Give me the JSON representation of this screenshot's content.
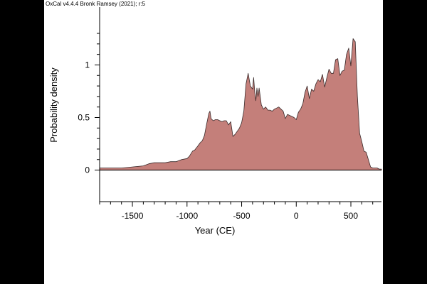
{
  "header": {
    "software": "OxCal v4.4.4 Bronk Ramsey (2021); r:5"
  },
  "chart_data": {
    "type": "area",
    "title": "",
    "xlabel": "Year (CE)",
    "ylabel": "Probability density",
    "xlim": [
      -1800,
      780
    ],
    "ylim": [
      -0.3,
      1.55
    ],
    "x_ticks": [
      -1500,
      -1000,
      -500,
      0,
      500
    ],
    "x_tick_labels": [
      "-1500",
      "-1000",
      "-500",
      "0",
      "500"
    ],
    "y_ticks": [
      0,
      0.5,
      1
    ],
    "y_tick_labels": [
      "0",
      "0.5",
      "1"
    ],
    "grid": false,
    "legend": "none",
    "fill_color": "#c47f7a",
    "line_color": "#3a2a2a",
    "series": [
      {
        "x": [
          -1800,
          -1600,
          -1500,
          -1400,
          -1350,
          -1300,
          -1250,
          -1200,
          -1150,
          -1100,
          -1050,
          -1000,
          -980,
          -950,
          -930,
          -900,
          -880,
          -860,
          -840,
          -820,
          -800,
          -790,
          -780,
          -770,
          -760,
          -740,
          -720,
          -700,
          -680,
          -660,
          -640,
          -620,
          -600,
          -580,
          -560,
          -540,
          -520,
          -500,
          -480,
          -460,
          -440,
          -420,
          -400,
          -390,
          -380,
          -370,
          -360,
          -350,
          -340,
          -320,
          -300,
          -280,
          -260,
          -240,
          -220,
          -200,
          -180,
          -160,
          -140,
          -120,
          -100,
          -80,
          -60,
          -40,
          -20,
          0,
          20,
          40,
          60,
          80,
          100,
          120,
          140,
          160,
          180,
          200,
          220,
          240,
          260,
          280,
          300,
          320,
          340,
          360,
          380,
          400,
          420,
          440,
          460,
          480,
          500,
          520,
          540,
          560,
          580,
          600,
          620,
          640,
          660,
          680,
          700,
          720,
          740,
          760,
          780
        ],
        "values": [
          0.02,
          0.02,
          0.03,
          0.04,
          0.06,
          0.07,
          0.07,
          0.07,
          0.08,
          0.08,
          0.1,
          0.11,
          0.13,
          0.18,
          0.19,
          0.23,
          0.26,
          0.28,
          0.33,
          0.44,
          0.54,
          0.56,
          0.49,
          0.48,
          0.47,
          0.48,
          0.48,
          0.47,
          0.46,
          0.47,
          0.47,
          0.43,
          0.46,
          0.32,
          0.34,
          0.37,
          0.4,
          0.45,
          0.56,
          0.82,
          0.92,
          0.8,
          0.77,
          0.88,
          0.74,
          0.66,
          0.78,
          0.7,
          0.78,
          0.62,
          0.58,
          0.6,
          0.57,
          0.57,
          0.56,
          0.58,
          0.59,
          0.6,
          0.58,
          0.56,
          0.49,
          0.53,
          0.52,
          0.51,
          0.5,
          0.48,
          0.55,
          0.58,
          0.63,
          0.74,
          0.8,
          0.68,
          0.77,
          0.75,
          0.82,
          0.86,
          0.84,
          0.91,
          0.79,
          0.88,
          0.96,
          0.92,
          0.92,
          1.05,
          1.06,
          0.9,
          0.94,
          0.95,
          1.1,
          1.16,
          0.99,
          1.25,
          1.22,
          0.7,
          0.35,
          0.27,
          0.18,
          0.17,
          0.1,
          0.03,
          0.02,
          0.02,
          0.02,
          0.01,
          0.01
        ]
      }
    ]
  }
}
